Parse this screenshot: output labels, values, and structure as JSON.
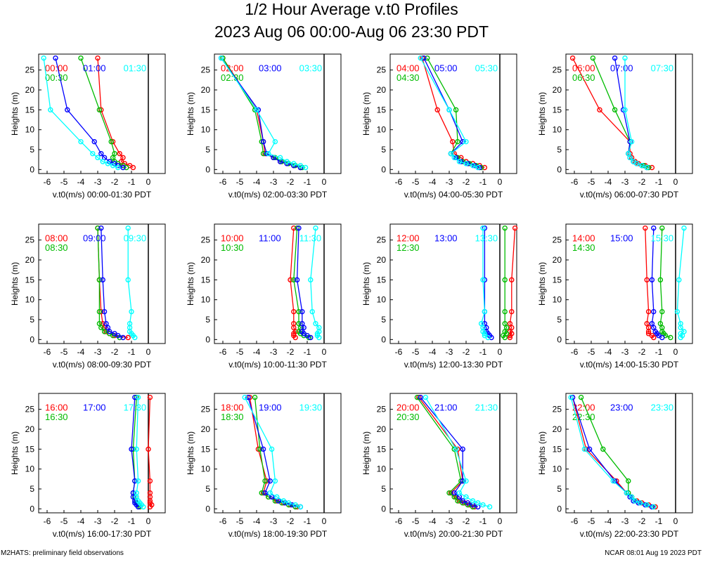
{
  "title": "1/2 Hour Average v.t0 Profiles",
  "subtitle": "2023 Aug 06 00:00-Aug 06 23:30 PDT",
  "footer_left": "M2HATS: preliminary field observations",
  "footer_right": "NCAR 08:01 Aug 19 2023 PDT",
  "colors": [
    "#ff0000",
    "#00bb00",
    "#0000ff",
    "#00ffff"
  ],
  "chart_data": [
    {
      "type": "line",
      "xlabel": "v.t0(m/s) 00:00-01:30 PDT",
      "ylabel": "Heights (m)",
      "xlim": [
        -6.5,
        1
      ],
      "ylim": [
        -1,
        29
      ],
      "xticks": [
        -6,
        -5,
        -4,
        -3,
        -2,
        -1,
        0
      ],
      "yticks": [
        0,
        5,
        10,
        15,
        20,
        25
      ],
      "heights": [
        0.5,
        1,
        1.5,
        2,
        3,
        4,
        7,
        15,
        28
      ],
      "series": [
        {
          "name": "00:00",
          "color": "#ff0000",
          "x": [
            -0.9,
            -1.1,
            -1.4,
            -1.6,
            -1.5,
            -1.7,
            -2.1,
            -2.8,
            -3.0
          ]
        },
        {
          "name": "00:30",
          "color": "#00bb00",
          "x": [
            -1.3,
            -1.5,
            -1.8,
            -2.0,
            -2.1,
            -2.0,
            -2.2,
            -2.9,
            -4.0
          ]
        },
        {
          "name": "01:00",
          "color": "#0000ff",
          "x": [
            -1.5,
            -1.8,
            -2.0,
            -2.3,
            -2.6,
            -2.8,
            -3.2,
            -4.8,
            -5.5
          ]
        },
        {
          "name": "01:30",
          "color": "#00ffff",
          "x": [
            -1.8,
            -2.1,
            -2.4,
            -2.7,
            -3.0,
            -3.3,
            -4.0,
            -5.8,
            -6.2
          ]
        }
      ]
    },
    {
      "type": "line",
      "xlabel": "v.t0(m/s) 02:00-03:30 PDT",
      "ylabel": "Heights (m)",
      "xlim": [
        -6.5,
        1
      ],
      "ylim": [
        -1,
        29
      ],
      "xticks": [
        -6,
        -5,
        -4,
        -3,
        -2,
        -1,
        0
      ],
      "yticks": [
        0,
        5,
        10,
        15,
        20,
        25
      ],
      "heights": [
        0.5,
        1,
        1.5,
        2,
        3,
        4,
        7,
        15,
        28
      ],
      "series": [
        {
          "name": "02:00",
          "color": "#ff0000",
          "x": [
            -1.4,
            -1.8,
            -2.2,
            -2.6,
            -3.0,
            -3.5,
            -3.6,
            -4.0,
            -6.0
          ]
        },
        {
          "name": "02:30",
          "color": "#00bb00",
          "x": [
            -1.3,
            -1.7,
            -2.1,
            -2.5,
            -2.9,
            -3.6,
            -3.7,
            -4.1,
            -6.0
          ]
        },
        {
          "name": "03:00",
          "color": "#0000ff",
          "x": [
            -1.4,
            -1.8,
            -2.2,
            -2.6,
            -3.0,
            -3.4,
            -3.6,
            -3.9,
            -6.1
          ]
        },
        {
          "name": "03:30",
          "color": "#00ffff",
          "x": [
            -1.1,
            -1.4,
            -1.8,
            -2.2,
            -2.6,
            -3.3,
            -2.9,
            -4.0,
            -6.1
          ]
        }
      ]
    },
    {
      "type": "line",
      "xlabel": "v.t0(m/s) 04:00-05:30 PDT",
      "ylabel": "Heights (m)",
      "xlim": [
        -6.5,
        1
      ],
      "ylim": [
        -1,
        29
      ],
      "xticks": [
        -6,
        -5,
        -4,
        -3,
        -2,
        -1,
        0
      ],
      "yticks": [
        0,
        5,
        10,
        15,
        20,
        25
      ],
      "heights": [
        0.5,
        1,
        1.5,
        2,
        3,
        4,
        7,
        15,
        28
      ],
      "series": [
        {
          "name": "04:00",
          "color": "#ff0000",
          "x": [
            -0.9,
            -1.2,
            -1.6,
            -2.0,
            -2.3,
            -2.7,
            -2.8,
            -3.7,
            -4.6
          ]
        },
        {
          "name": "04:30",
          "color": "#00bb00",
          "x": [
            -1.1,
            -1.4,
            -1.8,
            -2.2,
            -2.5,
            -2.9,
            -2.5,
            -2.6,
            -4.3
          ]
        },
        {
          "name": "05:00",
          "color": "#0000ff",
          "x": [
            -1.2,
            -1.5,
            -1.9,
            -2.3,
            -2.6,
            -2.9,
            -2.2,
            -3.0,
            -4.5
          ]
        },
        {
          "name": "05:30",
          "color": "#00ffff",
          "x": [
            -1.3,
            -1.6,
            -2.0,
            -2.4,
            -2.7,
            -2.9,
            -2.0,
            -3.0,
            -4.7
          ]
        }
      ]
    },
    {
      "type": "line",
      "xlabel": "v.t0(m/s) 06:00-07:30 PDT",
      "ylabel": "Heights (m)",
      "xlim": [
        -6.5,
        1
      ],
      "ylim": [
        -1,
        29
      ],
      "xticks": [
        -6,
        -5,
        -4,
        -3,
        -2,
        -1,
        0
      ],
      "yticks": [
        0,
        5,
        10,
        15,
        20,
        25
      ],
      "heights": [
        0.5,
        1,
        1.5,
        2,
        3,
        4,
        7,
        15,
        28
      ],
      "series": [
        {
          "name": "06:00",
          "color": "#ff0000",
          "x": [
            -1.4,
            -1.8,
            -2.2,
            -2.4,
            -2.6,
            -2.7,
            -2.7,
            -4.5,
            -6.1
          ]
        },
        {
          "name": "06:30",
          "color": "#00bb00",
          "x": [
            -1.6,
            -1.9,
            -2.3,
            -2.5,
            -2.7,
            -2.8,
            -2.7,
            -3.6,
            -4.9
          ]
        },
        {
          "name": "07:00",
          "color": "#0000ff",
          "x": [
            -1.7,
            -2.0,
            -2.3,
            -2.5,
            -2.7,
            -2.8,
            -2.7,
            -3.1,
            -3.6
          ]
        },
        {
          "name": "07:30",
          "color": "#00ffff",
          "x": [
            -1.7,
            -2.0,
            -2.3,
            -2.5,
            -2.7,
            -2.8,
            -2.6,
            -3.0,
            -3.0
          ]
        }
      ]
    },
    {
      "type": "line",
      "xlabel": "v.t0(m/s) 08:00-09:30 PDT",
      "ylabel": "Heights (m)",
      "xlim": [
        -6.5,
        1
      ],
      "ylim": [
        -1,
        29
      ],
      "xticks": [
        -6,
        -5,
        -4,
        -3,
        -2,
        -1,
        0
      ],
      "yticks": [
        0,
        5,
        10,
        15,
        20,
        25
      ],
      "heights": [
        0.5,
        1,
        1.5,
        2,
        3,
        4,
        7,
        15,
        28
      ],
      "series": [
        {
          "name": "08:00",
          "color": "#ff0000",
          "x": [
            -1.2,
            -2.0,
            -2.3,
            -2.5,
            -2.6,
            -2.7,
            -2.8,
            -2.9,
            -3.0
          ]
        },
        {
          "name": "08:30",
          "color": "#00bb00",
          "x": [
            -1.7,
            -2.1,
            -2.3,
            -2.6,
            -2.8,
            -2.9,
            -2.9,
            -2.9,
            -3.0
          ]
        },
        {
          "name": "09:00",
          "color": "#0000ff",
          "x": [
            -1.5,
            -1.8,
            -2.0,
            -2.3,
            -2.4,
            -2.5,
            -2.6,
            -2.7,
            -2.8
          ]
        },
        {
          "name": "09:30",
          "color": "#00ffff",
          "x": [
            -0.8,
            -0.9,
            -1.0,
            -1.1,
            -1.1,
            -1.1,
            -1.0,
            -1.2,
            -1.2
          ]
        }
      ]
    },
    {
      "type": "line",
      "xlabel": "v.t0(m/s) 10:00-11:30 PDT",
      "ylabel": "Heights (m)",
      "xlim": [
        -6.5,
        1
      ],
      "ylim": [
        -1,
        29
      ],
      "xticks": [
        -6,
        -5,
        -4,
        -3,
        -2,
        -1,
        0
      ],
      "yticks": [
        0,
        5,
        10,
        15,
        20,
        25
      ],
      "heights": [
        0.5,
        1,
        1.5,
        2,
        3,
        4,
        7,
        15,
        28
      ],
      "series": [
        {
          "name": "10:00",
          "color": "#ff0000",
          "x": [
            -1.7,
            -1.8,
            -1.8,
            -1.7,
            -1.8,
            -1.8,
            -1.8,
            -2.0,
            -1.8
          ]
        },
        {
          "name": "10:30",
          "color": "#00bb00",
          "x": [
            -0.9,
            -1.2,
            -1.4,
            -1.5,
            -1.4,
            -1.5,
            -1.5,
            -1.8,
            -1.6
          ]
        },
        {
          "name": "11:00",
          "color": "#0000ff",
          "x": [
            -0.8,
            -1.0,
            -1.2,
            -1.3,
            -1.2,
            -1.3,
            -1.3,
            -1.6,
            -1.5
          ]
        },
        {
          "name": "11:30",
          "color": "#00ffff",
          "x": [
            -0.3,
            -0.4,
            -0.4,
            -0.3,
            -0.3,
            -0.5,
            -0.7,
            -0.8,
            -0.5
          ]
        }
      ]
    },
    {
      "type": "line",
      "xlabel": "v.t0(m/s) 12:00-13:30 PDT",
      "ylabel": "Heights (m)",
      "xlim": [
        -6.5,
        1
      ],
      "ylim": [
        -1,
        29
      ],
      "xticks": [
        -6,
        -5,
        -4,
        -3,
        -2,
        -1,
        0
      ],
      "yticks": [
        0,
        5,
        10,
        15,
        20,
        25
      ],
      "heights": [
        0.5,
        1,
        1.5,
        2,
        3,
        4,
        7,
        15,
        28
      ],
      "series": [
        {
          "name": "12:00",
          "color": "#ff0000",
          "x": [
            0.6,
            0.6,
            0.7,
            0.6,
            0.7,
            0.6,
            0.7,
            0.7,
            0.9
          ]
        },
        {
          "name": "12:30",
          "color": "#00bb00",
          "x": [
            0.3,
            0.2,
            0.4,
            0.3,
            0.4,
            0.3,
            0.3,
            0.3,
            0.3
          ]
        },
        {
          "name": "13:00",
          "color": "#0000ff",
          "x": [
            -0.5,
            -0.6,
            -0.7,
            -0.8,
            -0.8,
            -0.9,
            -0.9,
            -0.9,
            -0.9
          ]
        },
        {
          "name": "13:30",
          "color": "#00ffff",
          "x": [
            -0.7,
            -0.9,
            -0.9,
            -1.0,
            -1.0,
            -1.1,
            -0.9,
            -1.0,
            -1.0
          ]
        }
      ]
    },
    {
      "type": "line",
      "xlabel": "v.t0(m/s) 14:00-15:30 PDT",
      "ylabel": "Heights (m)",
      "xlim": [
        -6.5,
        1
      ],
      "ylim": [
        -1,
        29
      ],
      "xticks": [
        -6,
        -5,
        -4,
        -3,
        -2,
        -1,
        0
      ],
      "yticks": [
        0,
        5,
        10,
        15,
        20,
        25
      ],
      "heights": [
        0.5,
        1,
        1.5,
        2,
        3,
        4,
        7,
        15,
        28
      ],
      "series": [
        {
          "name": "14:00",
          "color": "#ff0000",
          "x": [
            -1.3,
            -1.4,
            -1.6,
            -1.6,
            -1.6,
            -1.7,
            -1.6,
            -1.7,
            -1.8
          ]
        },
        {
          "name": "14:30",
          "color": "#00bb00",
          "x": [
            -0.3,
            -0.6,
            -0.7,
            -0.8,
            -0.8,
            -0.9,
            -0.8,
            -0.9,
            -0.8
          ]
        },
        {
          "name": "15:00",
          "color": "#0000ff",
          "x": [
            -0.8,
            -1.0,
            -1.1,
            -1.2,
            -1.3,
            -1.4,
            -1.3,
            -1.4,
            -1.3
          ]
        },
        {
          "name": "15:30",
          "color": "#00ffff",
          "x": [
            0.3,
            0.4,
            0.3,
            0.5,
            0.3,
            0.3,
            0.1,
            0.2,
            0.5
          ]
        }
      ]
    },
    {
      "type": "line",
      "xlabel": "v.t0(m/s) 16:00-17:30 PDT",
      "ylabel": "Heights (m)",
      "xlim": [
        -6.5,
        1
      ],
      "ylim": [
        -1,
        29
      ],
      "xticks": [
        -6,
        -5,
        -4,
        -3,
        -2,
        -1,
        0
      ],
      "yticks": [
        0,
        5,
        10,
        15,
        20,
        25
      ],
      "heights": [
        0.5,
        1,
        1.5,
        2,
        3,
        4,
        7,
        15,
        28
      ],
      "series": [
        {
          "name": "16:00",
          "color": "#ff0000",
          "x": [
            0.1,
            0.2,
            0.1,
            0.1,
            0.1,
            0.1,
            0.1,
            0.0,
            0.1
          ]
        },
        {
          "name": "16:30",
          "color": "#00bb00",
          "x": [
            -0.5,
            -0.6,
            -0.7,
            -0.8,
            -0.8,
            -0.9,
            -0.8,
            -0.9,
            -0.7
          ]
        },
        {
          "name": "17:00",
          "color": "#0000ff",
          "x": [
            -0.6,
            -0.7,
            -0.8,
            -0.8,
            -0.9,
            -0.9,
            -0.8,
            -1.0,
            -0.8
          ]
        },
        {
          "name": "17:30",
          "color": "#00ffff",
          "x": [
            -0.3,
            -0.4,
            -0.5,
            -0.6,
            -0.7,
            -0.7,
            -0.6,
            -0.7,
            -0.6
          ]
        }
      ]
    },
    {
      "type": "line",
      "xlabel": "v.t0(m/s) 18:00-19:30 PDT",
      "ylabel": "Heights (m)",
      "xlim": [
        -6.5,
        1
      ],
      "ylim": [
        -1,
        29
      ],
      "xticks": [
        -6,
        -5,
        -4,
        -3,
        -2,
        -1,
        0
      ],
      "yticks": [
        0,
        5,
        10,
        15,
        20,
        25
      ],
      "heights": [
        0.5,
        1,
        1.5,
        2,
        3,
        4,
        7,
        15,
        28
      ],
      "series": [
        {
          "name": "18:00",
          "color": "#ff0000",
          "x": [
            -1.6,
            -2.0,
            -2.4,
            -2.8,
            -3.3,
            -3.6,
            -3.4,
            -3.9,
            -4.4
          ]
        },
        {
          "name": "18:30",
          "color": "#00bb00",
          "x": [
            -1.7,
            -2.1,
            -2.5,
            -2.9,
            -3.3,
            -3.7,
            -3.5,
            -3.8,
            -4.1
          ]
        },
        {
          "name": "19:00",
          "color": "#0000ff",
          "x": [
            -1.4,
            -1.9,
            -2.3,
            -2.7,
            -3.1,
            -3.5,
            -3.2,
            -3.6,
            -4.5
          ]
        },
        {
          "name": "19:30",
          "color": "#00ffff",
          "x": [
            -1.4,
            -1.7,
            -2.1,
            -2.4,
            -2.8,
            -3.2,
            -2.9,
            -3.1,
            -4.7
          ]
        }
      ]
    },
    {
      "type": "line",
      "xlabel": "v.t0(m/s) 20:00-21:30 PDT",
      "ylabel": "Heights (m)",
      "xlim": [
        -6.5,
        1
      ],
      "ylim": [
        -1,
        29
      ],
      "xticks": [
        -6,
        -5,
        -4,
        -3,
        -2,
        -1,
        0
      ],
      "yticks": [
        0,
        5,
        10,
        15,
        20,
        25
      ],
      "heights": [
        0.5,
        1,
        1.5,
        2,
        3,
        4,
        7,
        15,
        28
      ],
      "series": [
        {
          "name": "20:00",
          "color": "#ff0000",
          "x": [
            -1.5,
            -1.8,
            -2.1,
            -2.4,
            -2.6,
            -2.9,
            -2.2,
            -2.5,
            -4.8
          ]
        },
        {
          "name": "20:30",
          "color": "#00bb00",
          "x": [
            -1.6,
            -1.9,
            -2.2,
            -2.5,
            -2.7,
            -3.0,
            -2.3,
            -2.7,
            -4.9
          ]
        },
        {
          "name": "21:00",
          "color": "#0000ff",
          "x": [
            -1.3,
            -1.6,
            -1.9,
            -2.2,
            -2.4,
            -2.7,
            -2.2,
            -2.2,
            -4.7
          ]
        },
        {
          "name": "21:30",
          "color": "#00ffff",
          "x": [
            -0.6,
            -1.0,
            -1.3,
            -1.6,
            -2.0,
            -2.4,
            -2.0,
            -2.6,
            -4.4
          ]
        }
      ]
    },
    {
      "type": "line",
      "xlabel": "v.t0(m/s) 22:00-23:30 PDT",
      "ylabel": "Heights (m)",
      "xlim": [
        -6.5,
        1
      ],
      "ylim": [
        -1,
        29
      ],
      "xticks": [
        -6,
        -5,
        -4,
        -3,
        -2,
        -1,
        0
      ],
      "yticks": [
        0,
        5,
        10,
        15,
        20,
        25
      ],
      "heights": [
        0.5,
        1,
        1.5,
        2,
        3,
        4,
        7,
        15,
        28
      ],
      "series": [
        {
          "name": "22:00",
          "color": "#ff0000",
          "x": [
            -1.2,
            -1.6,
            -2.0,
            -2.3,
            -2.6,
            -2.9,
            -3.5,
            -5.3,
            -6.1
          ]
        },
        {
          "name": "22:30",
          "color": "#00bb00",
          "x": [
            -1.3,
            -1.7,
            -2.1,
            -2.4,
            -2.6,
            -2.8,
            -2.8,
            -4.3,
            -5.6
          ]
        },
        {
          "name": "23:00",
          "color": "#0000ff",
          "x": [
            -1.4,
            -1.8,
            -2.2,
            -2.5,
            -2.7,
            -2.9,
            -3.6,
            -5.1,
            -6.1
          ]
        },
        {
          "name": "23:30",
          "color": "#00ffff",
          "x": [
            -1.3,
            -1.7,
            -2.1,
            -2.4,
            -2.6,
            -2.9,
            -3.7,
            -5.4,
            -6.2
          ]
        }
      ]
    }
  ]
}
